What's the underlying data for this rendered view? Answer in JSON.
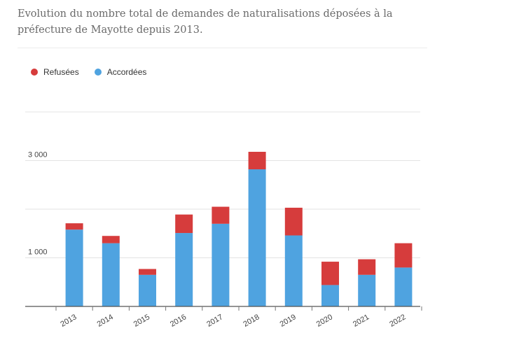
{
  "header": {
    "title": "Evolution du nombre total de demandes de naturalisations déposées à la préfecture de Mayotte depuis 2013."
  },
  "chart_data": {
    "type": "bar",
    "stacked": true,
    "title": "Evolution du nombre total de demandes de naturalisations déposées à la préfecture de Mayotte depuis 2013.",
    "categories": [
      "2013",
      "2014",
      "2015",
      "2016",
      "2017",
      "2018",
      "2019",
      "2020",
      "2021",
      "2022"
    ],
    "series": [
      {
        "name": "Accordées",
        "color": "#4fa3e0",
        "values": [
          1580,
          1300,
          650,
          1510,
          1700,
          2820,
          1460,
          440,
          650,
          800
        ]
      },
      {
        "name": "Refusées",
        "color": "#d63c3c",
        "values": [
          130,
          150,
          120,
          380,
          350,
          360,
          570,
          480,
          320,
          500
        ]
      }
    ],
    "y_ticks": [
      {
        "value": 1000,
        "label": "1 000"
      },
      {
        "value": 2000,
        "label": ""
      },
      {
        "value": 3000,
        "label": "3 000"
      },
      {
        "value": 4000,
        "label": ""
      }
    ],
    "ylim": [
      0,
      4000
    ],
    "legend_position": "top-left",
    "grid": true
  }
}
